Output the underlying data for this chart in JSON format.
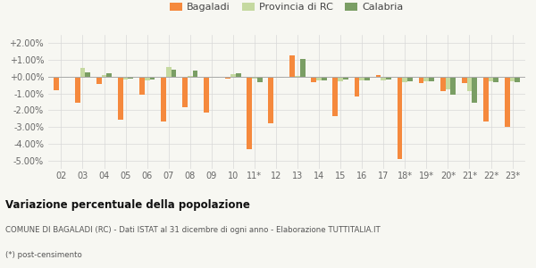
{
  "categories": [
    "02",
    "03",
    "04",
    "05",
    "06",
    "07",
    "08",
    "09",
    "10",
    "11*",
    "12",
    "13",
    "14",
    "15",
    "16",
    "17",
    "18*",
    "19*",
    "20*",
    "21*",
    "22*",
    "23*"
  ],
  "bagaladi": [
    -0.8,
    -1.55,
    -0.45,
    -2.55,
    -1.05,
    -2.65,
    -1.8,
    -2.15,
    -0.1,
    -4.3,
    -2.8,
    1.25,
    -0.3,
    -2.35,
    -1.2,
    0.1,
    -4.9,
    -0.4,
    -0.85,
    -0.4,
    -2.65,
    -3.0
  ],
  "provincia_rc": [
    -0.05,
    0.55,
    0.1,
    -0.15,
    -0.2,
    0.6,
    0.05,
    -0.05,
    0.15,
    -0.1,
    -0.05,
    0.05,
    -0.2,
    -0.25,
    -0.2,
    -0.2,
    -0.35,
    -0.25,
    -0.75,
    -0.85,
    -0.25,
    -0.25
  ],
  "calabria": [
    -0.05,
    0.25,
    0.2,
    -0.1,
    -0.15,
    0.4,
    0.35,
    -0.05,
    0.2,
    -0.3,
    -0.05,
    1.05,
    -0.2,
    -0.15,
    -0.2,
    -0.15,
    -0.25,
    -0.25,
    -1.05,
    -1.55,
    -0.3,
    -0.35
  ],
  "color_bagaladi": "#f5893d",
  "color_provincia": "#c5d9a0",
  "color_calabria": "#7a9e64",
  "bg_color": "#f7f7f2",
  "ylim_min": -5.5,
  "ylim_max": 2.5,
  "title": "Variazione percentuale della popolazione",
  "subtitle": "COMUNE DI BAGALADI (RC) - Dati ISTAT al 31 dicembre di ogni anno - Elaborazione TUTTITALIA.IT",
  "footnote": "(*) post-censimento"
}
